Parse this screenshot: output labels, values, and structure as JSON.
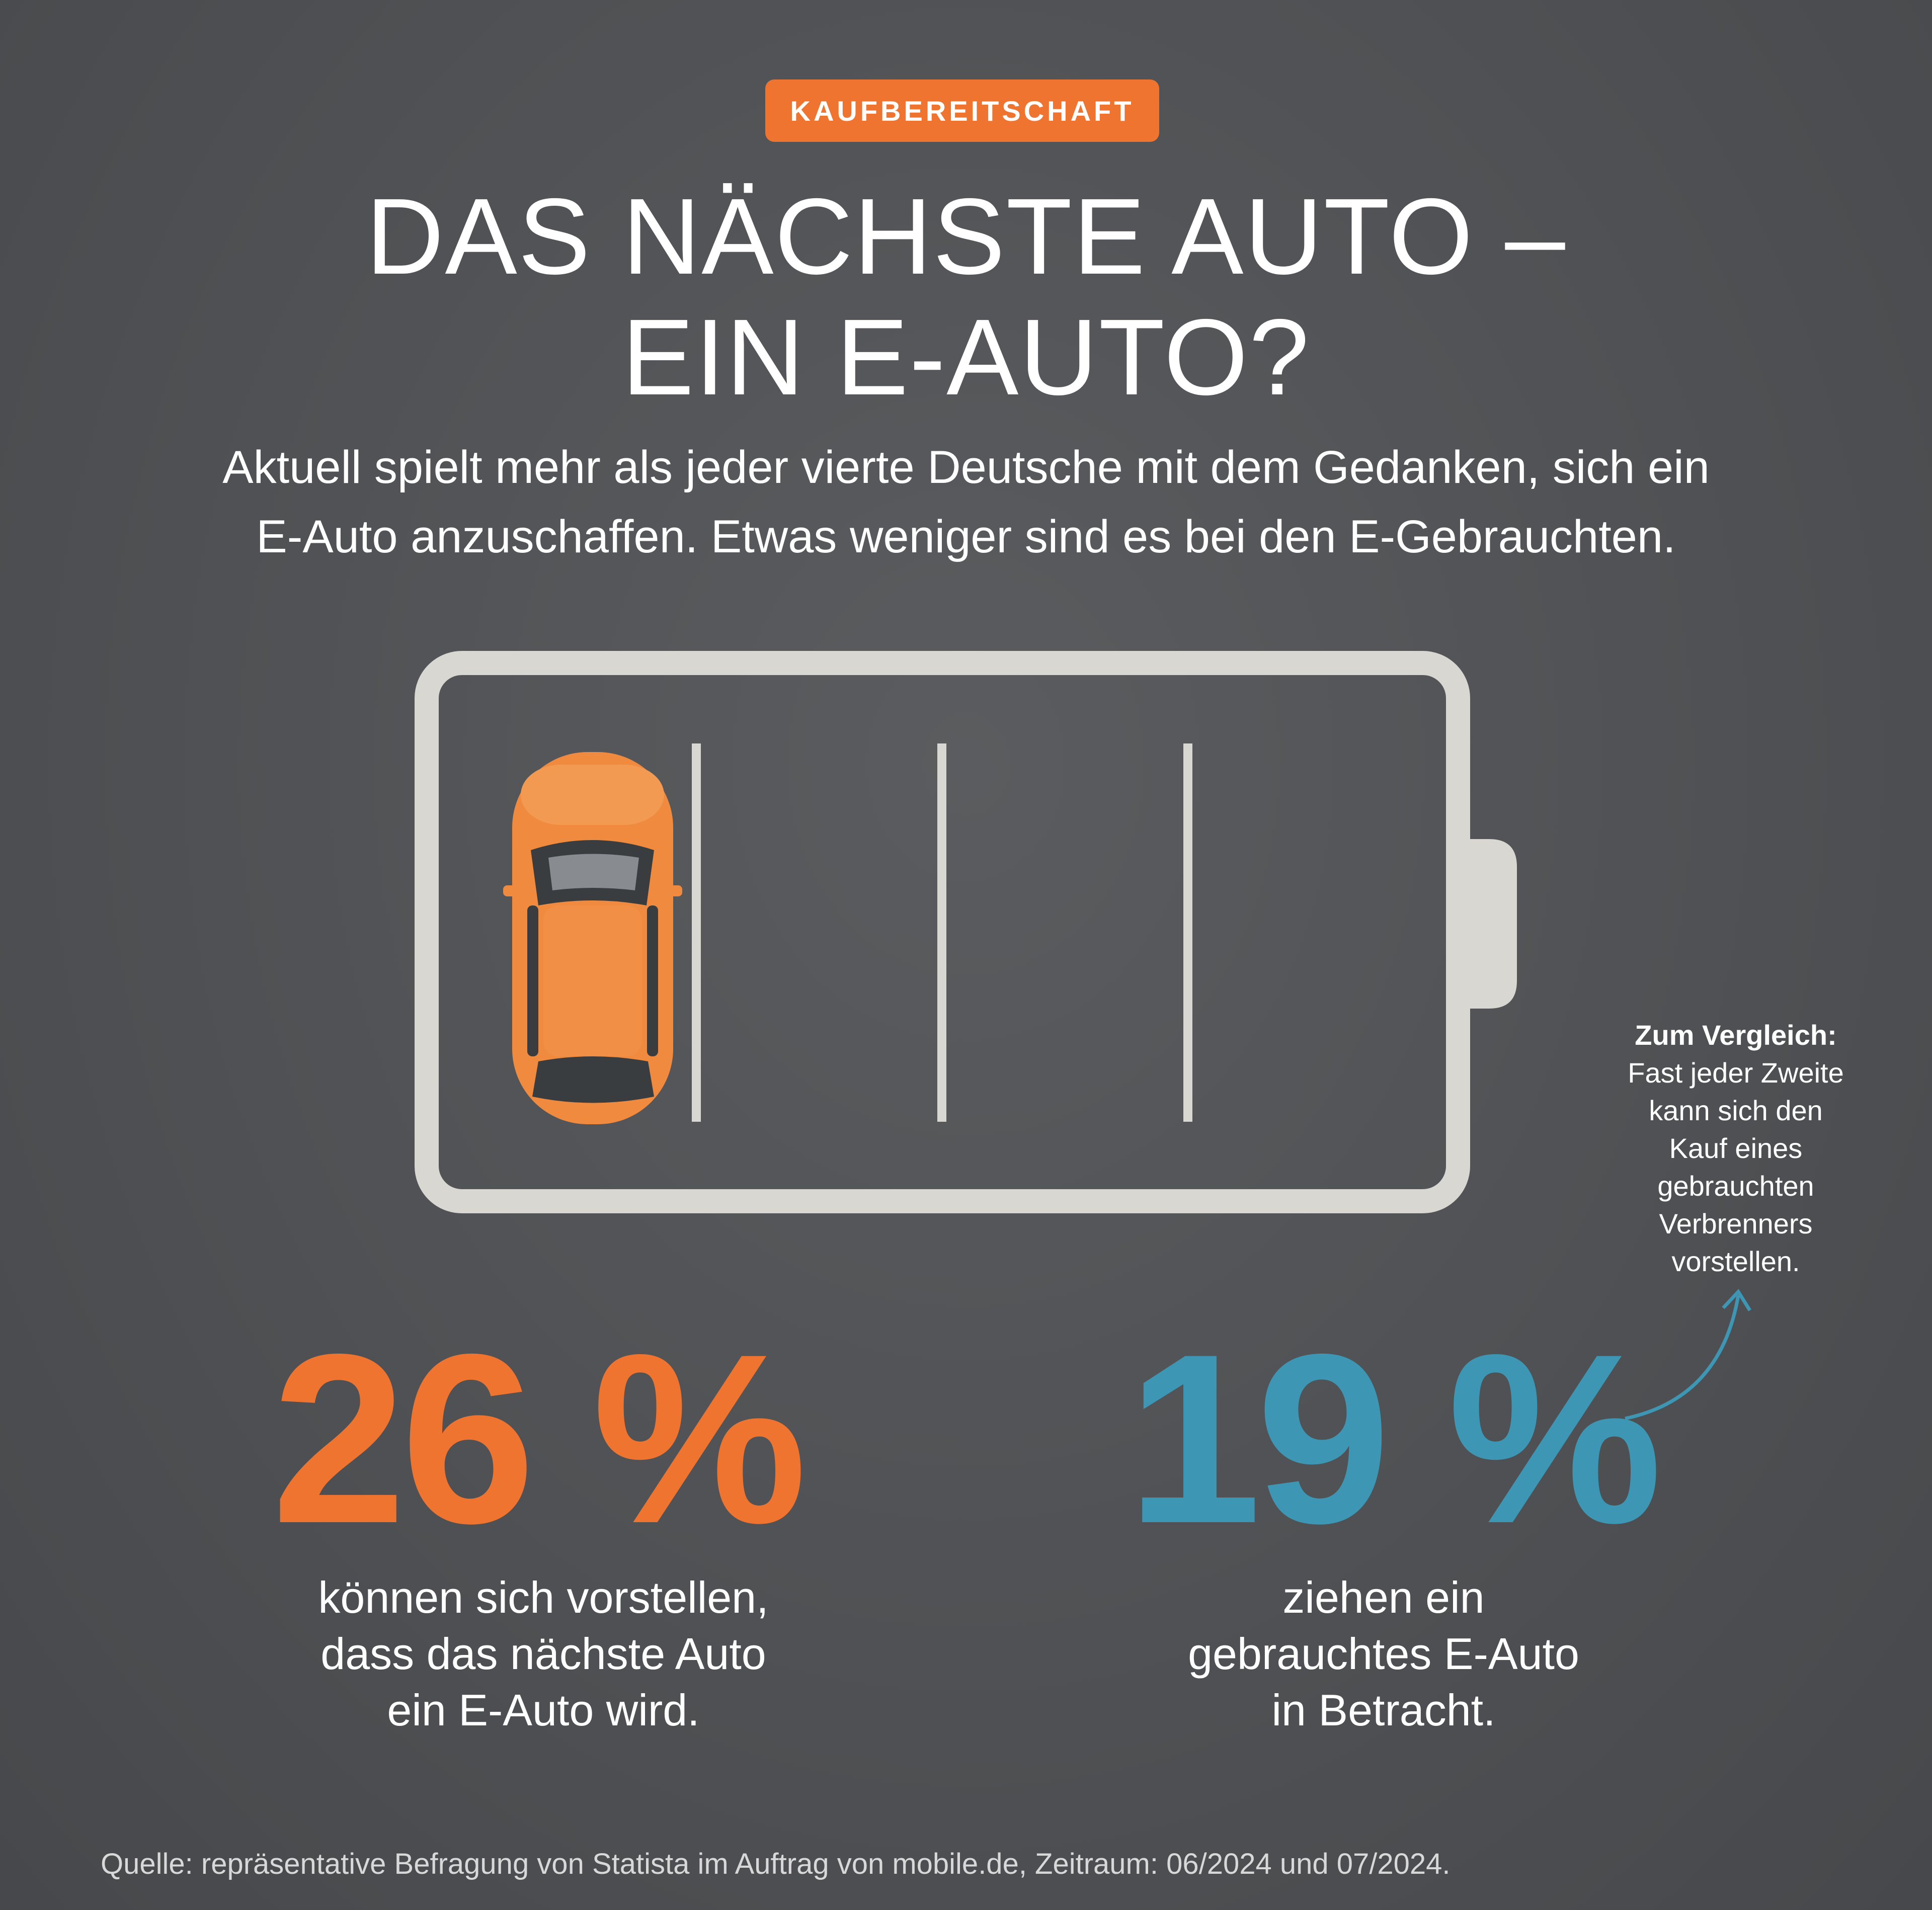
{
  "badge": "KAUFBEREITSCHAFT",
  "title": {
    "line1": "DAS NÄCHSTE AUTO –",
    "line2": "EIN E-AUTO?"
  },
  "subtitle": {
    "line1": "Aktuell spielt mehr als jeder vierte Deutsche mit dem Gedanken, sich ein",
    "line2": "E-Auto anzuschaffen. Etwas weniger sind es bei den E-Gebrauchten."
  },
  "stat_left": {
    "value": "26 %",
    "lines": [
      "können sich vorstellen,",
      "dass das nächste Auto",
      "ein E-Auto wird."
    ]
  },
  "stat_right": {
    "value": "19 %",
    "lines": [
      "ziehen ein",
      "gebrauchtes E-Auto",
      "in Betracht."
    ]
  },
  "note": {
    "heading": "Zum Vergleich:",
    "lines": [
      "Fast jeder Zweite",
      "kann sich den",
      "Kauf eines",
      "gebrauchten",
      "Verbrenners",
      "vorstellen."
    ]
  },
  "source": "Quelle: repräsentative Befragung von Statista im Auftrag von mobile.de, Zeitraum: 06/2024 und 07/2024.",
  "colors": {
    "accent_orange": "#ee7430",
    "accent_blue": "#3d97b4",
    "background": "#525457",
    "battery_outline": "#d9d7d2",
    "car_body": "#ef8a3e"
  }
}
